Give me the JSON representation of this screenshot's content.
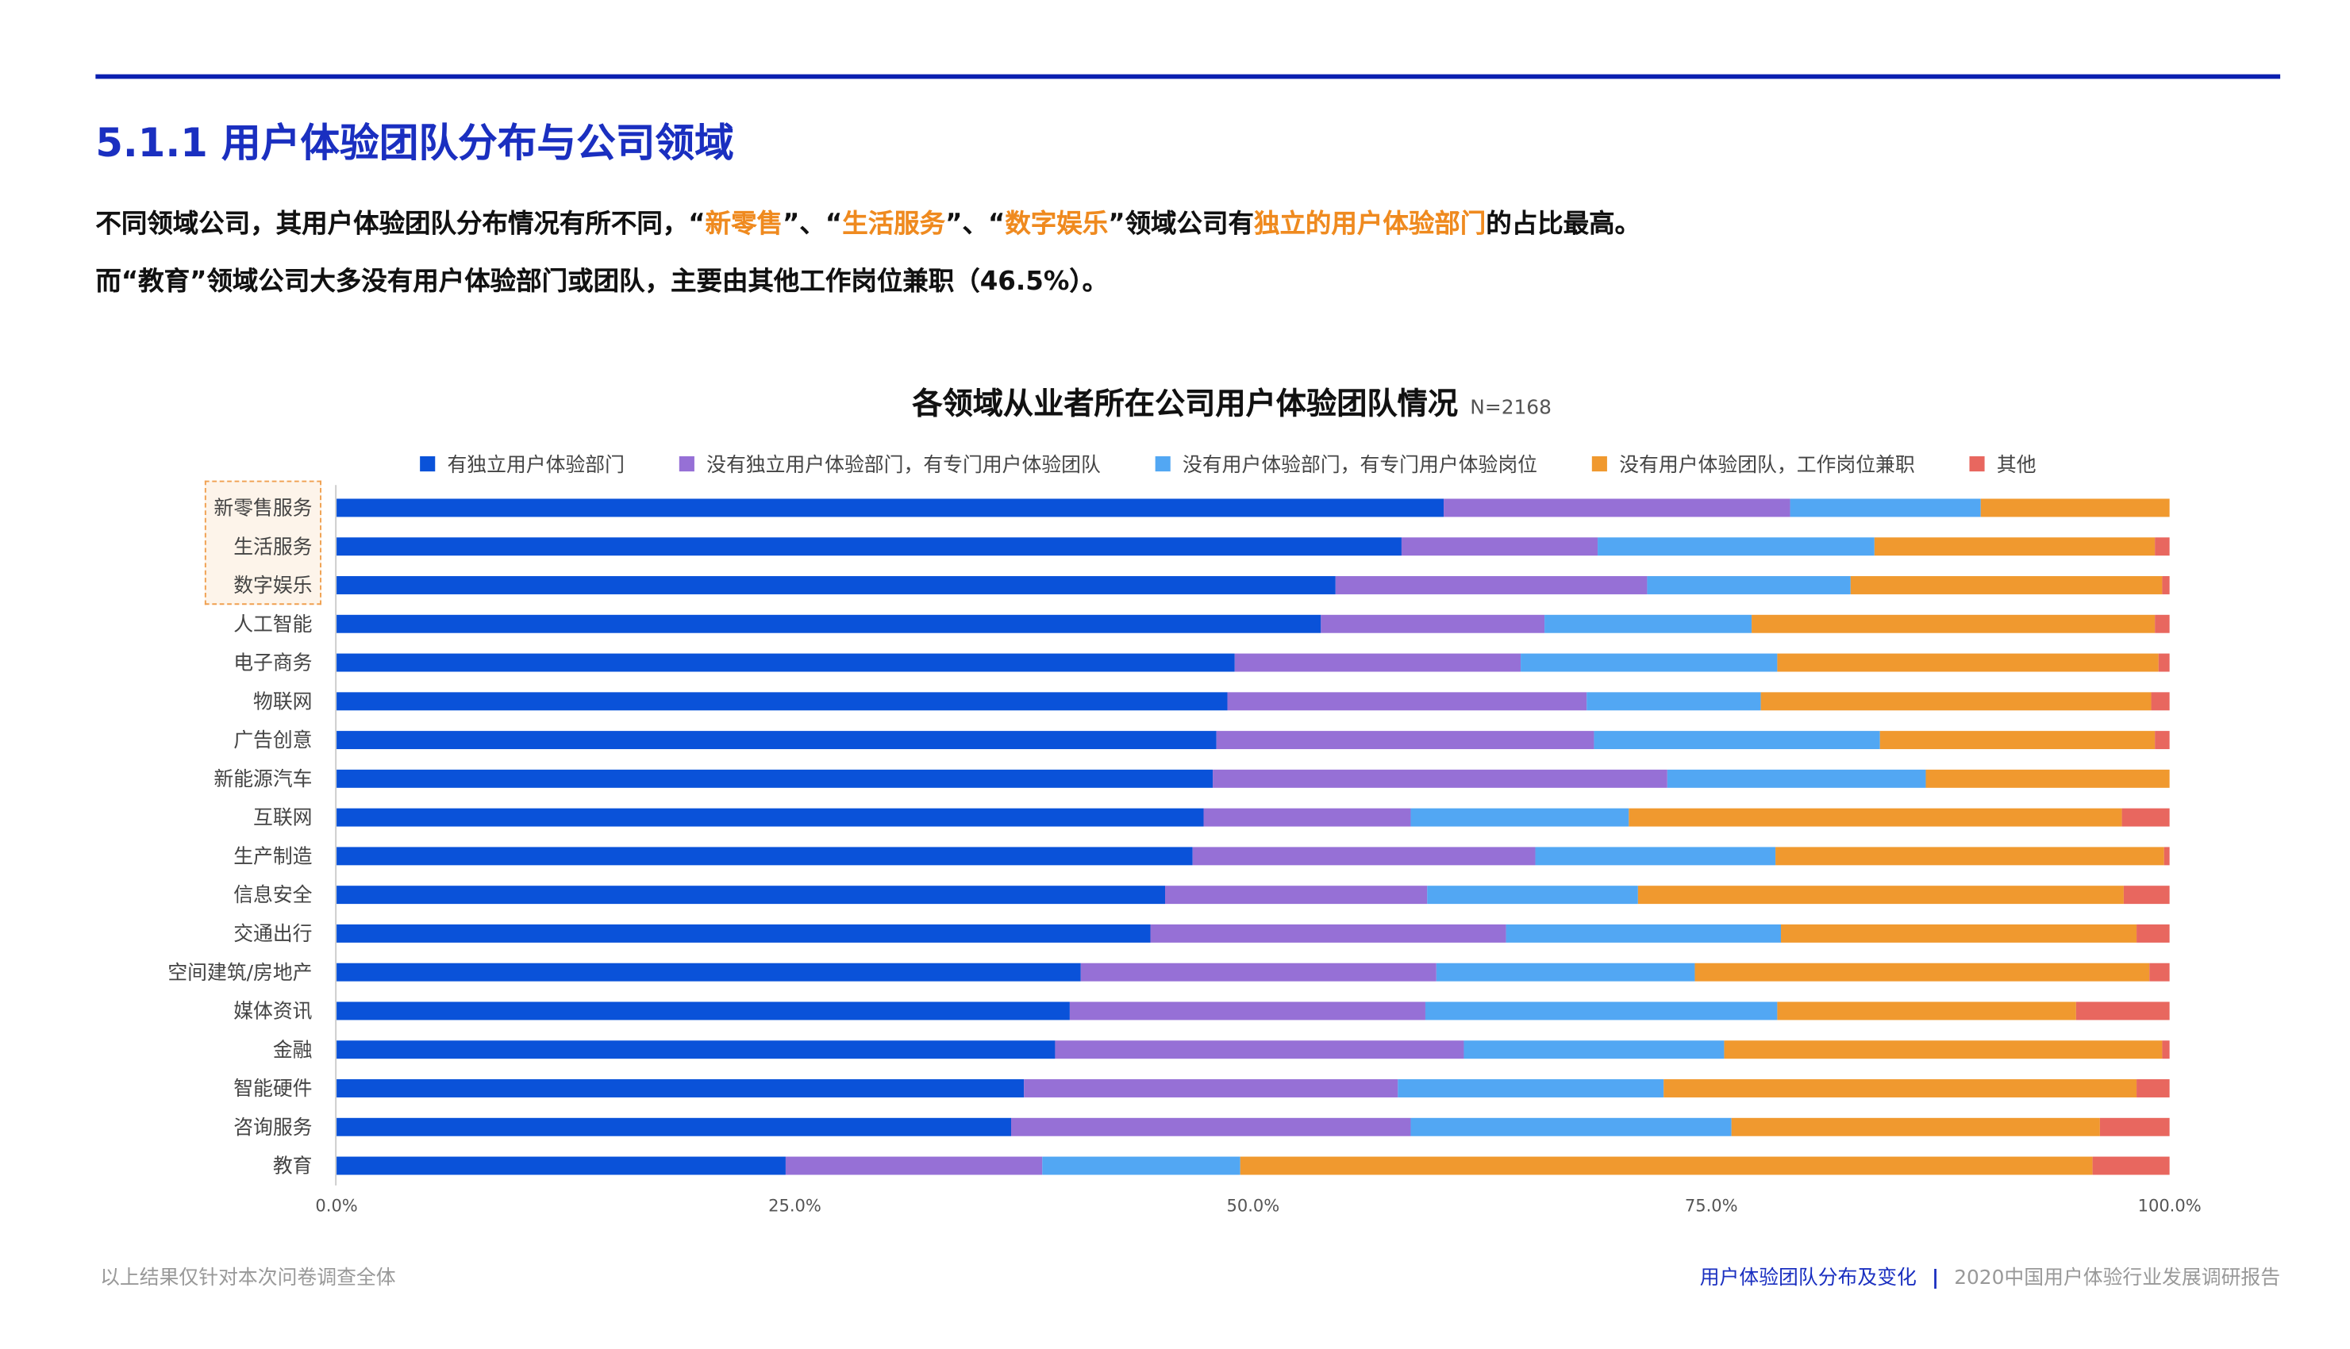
{
  "header": {
    "title": "5.1.1 用户体验团队分布与公司领域"
  },
  "paragraph": {
    "line1": [
      "不同领域公司，其用户体验团队分布情况有所不同，“",
      "新零售",
      "”、“",
      "生活服务",
      "”、“",
      "数字娱乐",
      "”领域公司有",
      "独立的用户体验部门",
      "的占比最高。"
    ],
    "line2": "而“教育”领域公司大多没有用户体验部门或团队，主要由其他工作岗位兼职（46.5%）。"
  },
  "colors": {
    "accent": "#1a2fc0",
    "highlight": "#ef8a1f"
  },
  "chart_data": {
    "type": "bar",
    "orientation": "horizontal",
    "stacked": true,
    "title": "各领域从业者所在公司用户体验团队情况",
    "subtitle": "N=2168",
    "legend_position": "top",
    "xlim": [
      0,
      100
    ],
    "x_ticks": [
      "0.0%",
      "25.0%",
      "50.0%",
      "75.0%",
      "100.0%"
    ],
    "highlighted_categories": [
      "新零售服务",
      "生活服务",
      "数字娱乐"
    ],
    "categories": [
      "新零售服务",
      "生活服务",
      "数字娱乐",
      "人工智能",
      "电子商务",
      "物联网",
      "广告创意",
      "新能源汽车",
      "互联网",
      "生产制造",
      "信息安全",
      "交通出行",
      "空间建筑/房地产",
      "媒体资讯",
      "金融",
      "智能硬件",
      "咨询服务",
      "教育"
    ],
    "series": [
      {
        "name": "有独立用户体验部门",
        "color": "#0a52d9",
        "values": [
          60.4,
          58.1,
          54.5,
          53.7,
          49.0,
          48.6,
          48.0,
          47.8,
          47.3,
          46.7,
          45.2,
          44.4,
          40.6,
          40.0,
          39.2,
          37.5,
          36.8,
          24.5
        ]
      },
      {
        "name": "没有独立用户体验部门，有专门用户体验团队",
        "color": "#9670d6",
        "values": [
          18.9,
          10.7,
          17.0,
          12.2,
          15.6,
          19.6,
          20.6,
          24.8,
          11.3,
          18.7,
          14.3,
          19.4,
          19.4,
          19.4,
          22.3,
          20.4,
          21.8,
          14.0
        ]
      },
      {
        "name": "没有用户体验部门，有专门用户体验岗位",
        "color": "#52a7f3",
        "values": [
          10.4,
          15.1,
          11.1,
          11.3,
          14.0,
          9.5,
          15.6,
          14.1,
          11.9,
          13.1,
          11.5,
          15.0,
          14.1,
          19.2,
          14.2,
          14.5,
          17.5,
          10.8
        ]
      },
      {
        "name": "没有用户体验团队，工作岗位兼职",
        "color": "#f0992f",
        "values": [
          10.3,
          15.3,
          17.0,
          22.0,
          20.8,
          21.3,
          15.0,
          13.3,
          26.9,
          21.2,
          26.5,
          19.4,
          24.8,
          16.3,
          23.9,
          25.8,
          20.1,
          46.5
        ]
      },
      {
        "name": "其他",
        "color": "#e8675f",
        "values": [
          0.0,
          0.8,
          0.4,
          0.8,
          0.6,
          1.0,
          0.8,
          0.0,
          2.6,
          0.3,
          2.5,
          1.8,
          1.1,
          5.1,
          0.4,
          1.8,
          3.8,
          4.2
        ]
      }
    ]
  },
  "footer": {
    "note": "以上结果仅针对本次问卷调查全体",
    "section": "用户体验团队分布及变化",
    "separator": "|",
    "report": "2020中国用户体验行业发展调研报告"
  }
}
